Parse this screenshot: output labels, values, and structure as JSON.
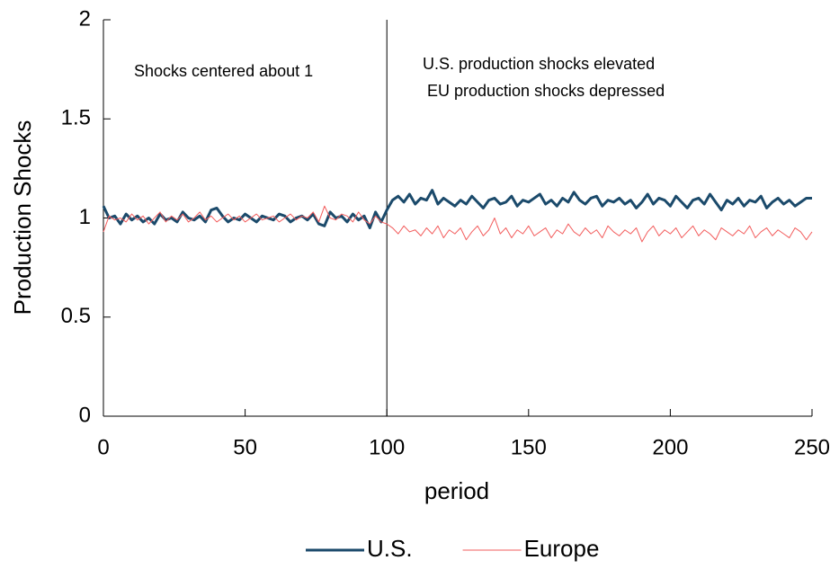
{
  "chart_data": {
    "type": "line",
    "xlabel": "period",
    "ylabel": "Production Shocks",
    "annotations": [
      "Shocks centered about 1",
      "U.S. production shocks elevated",
      "EU  production shocks depressed"
    ],
    "vline": 100,
    "xlim": [
      0,
      250
    ],
    "ylim": [
      0,
      2
    ],
    "xticks": [
      0,
      50,
      100,
      150,
      200,
      250
    ],
    "yticks": [
      0,
      0.5,
      1,
      1.5,
      2
    ],
    "grid": false,
    "legend": "bottom",
    "x": [
      0,
      2,
      4,
      6,
      8,
      10,
      12,
      14,
      16,
      18,
      20,
      22,
      24,
      26,
      28,
      30,
      32,
      34,
      36,
      38,
      40,
      42,
      44,
      46,
      48,
      50,
      52,
      54,
      56,
      58,
      60,
      62,
      64,
      66,
      68,
      70,
      72,
      74,
      76,
      78,
      80,
      82,
      84,
      86,
      88,
      90,
      92,
      94,
      96,
      98,
      100,
      102,
      104,
      106,
      108,
      110,
      112,
      114,
      116,
      118,
      120,
      122,
      124,
      126,
      128,
      130,
      132,
      134,
      136,
      138,
      140,
      142,
      144,
      146,
      148,
      150,
      152,
      154,
      156,
      158,
      160,
      162,
      164,
      166,
      168,
      170,
      172,
      174,
      176,
      178,
      180,
      182,
      184,
      186,
      188,
      190,
      192,
      194,
      196,
      198,
      200,
      202,
      204,
      206,
      208,
      210,
      212,
      214,
      216,
      218,
      220,
      222,
      224,
      226,
      228,
      230,
      232,
      234,
      236,
      238,
      240,
      242,
      244,
      246,
      248,
      250
    ],
    "series": [
      {
        "name": "U.S.",
        "color": "#1b4a6b",
        "values": [
          1.06,
          1.0,
          1.01,
          0.97,
          1.02,
          0.99,
          1.01,
          0.98,
          1.0,
          0.97,
          1.02,
          0.99,
          1.0,
          0.98,
          1.03,
          1.0,
          0.99,
          1.01,
          0.98,
          1.04,
          1.05,
          1.01,
          0.98,
          1.0,
          0.99,
          1.02,
          1.0,
          0.98,
          1.01,
          1.0,
          0.99,
          1.02,
          1.01,
          0.98,
          1.0,
          1.01,
          0.99,
          1.02,
          0.97,
          0.96,
          1.03,
          1.0,
          1.01,
          0.98,
          1.02,
          0.99,
          1.01,
          0.95,
          1.03,
          0.98,
          1.04,
          1.09,
          1.11,
          1.08,
          1.12,
          1.07,
          1.1,
          1.09,
          1.14,
          1.07,
          1.1,
          1.08,
          1.06,
          1.09,
          1.07,
          1.11,
          1.08,
          1.05,
          1.09,
          1.1,
          1.07,
          1.08,
          1.11,
          1.06,
          1.09,
          1.08,
          1.1,
          1.12,
          1.07,
          1.09,
          1.06,
          1.1,
          1.08,
          1.13,
          1.09,
          1.07,
          1.1,
          1.11,
          1.06,
          1.09,
          1.08,
          1.1,
          1.07,
          1.09,
          1.05,
          1.08,
          1.12,
          1.07,
          1.1,
          1.09,
          1.06,
          1.11,
          1.08,
          1.05,
          1.09,
          1.1,
          1.07,
          1.12,
          1.08,
          1.04,
          1.09,
          1.07,
          1.1,
          1.06,
          1.09,
          1.08,
          1.11,
          1.05,
          1.08,
          1.1,
          1.07,
          1.09,
          1.06,
          1.08,
          1.1,
          1.1
        ]
      },
      {
        "name": "Europe",
        "color": "#f25c5c",
        "values": [
          0.93,
          1.01,
          0.99,
          1.0,
          0.98,
          1.02,
          0.99,
          1.01,
          0.97,
          1.0,
          1.03,
          0.98,
          1.01,
          0.99,
          1.02,
          0.98,
          1.0,
          1.03,
          0.99,
          1.01,
          0.98,
          1.0,
          1.02,
          0.99,
          1.01,
          0.98,
          1.0,
          1.02,
          0.99,
          1.0,
          1.01,
          0.98,
          1.0,
          1.02,
          0.99,
          1.01,
          1.0,
          1.03,
          0.98,
          1.06,
          1.0,
          0.99,
          1.02,
          1.01,
          0.98,
          1.03,
          0.99,
          0.97,
          1.01,
          0.98,
          0.97,
          0.95,
          0.92,
          0.96,
          0.93,
          0.94,
          0.91,
          0.95,
          0.92,
          0.96,
          0.9,
          0.94,
          0.92,
          0.95,
          0.89,
          0.93,
          0.96,
          0.91,
          0.94,
          1.0,
          0.92,
          0.95,
          0.9,
          0.94,
          0.92,
          0.96,
          0.91,
          0.93,
          0.95,
          0.9,
          0.94,
          0.92,
          0.97,
          0.93,
          0.91,
          0.95,
          0.92,
          0.94,
          0.9,
          0.96,
          0.93,
          0.91,
          0.94,
          0.92,
          0.95,
          0.88,
          0.93,
          0.96,
          0.91,
          0.94,
          0.92,
          0.95,
          0.9,
          0.93,
          0.96,
          0.91,
          0.94,
          0.92,
          0.89,
          0.95,
          0.93,
          0.91,
          0.94,
          0.92,
          0.96,
          0.9,
          0.93,
          0.95,
          0.91,
          0.94,
          0.92,
          0.9,
          0.95,
          0.93,
          0.89,
          0.93
        ]
      }
    ]
  }
}
